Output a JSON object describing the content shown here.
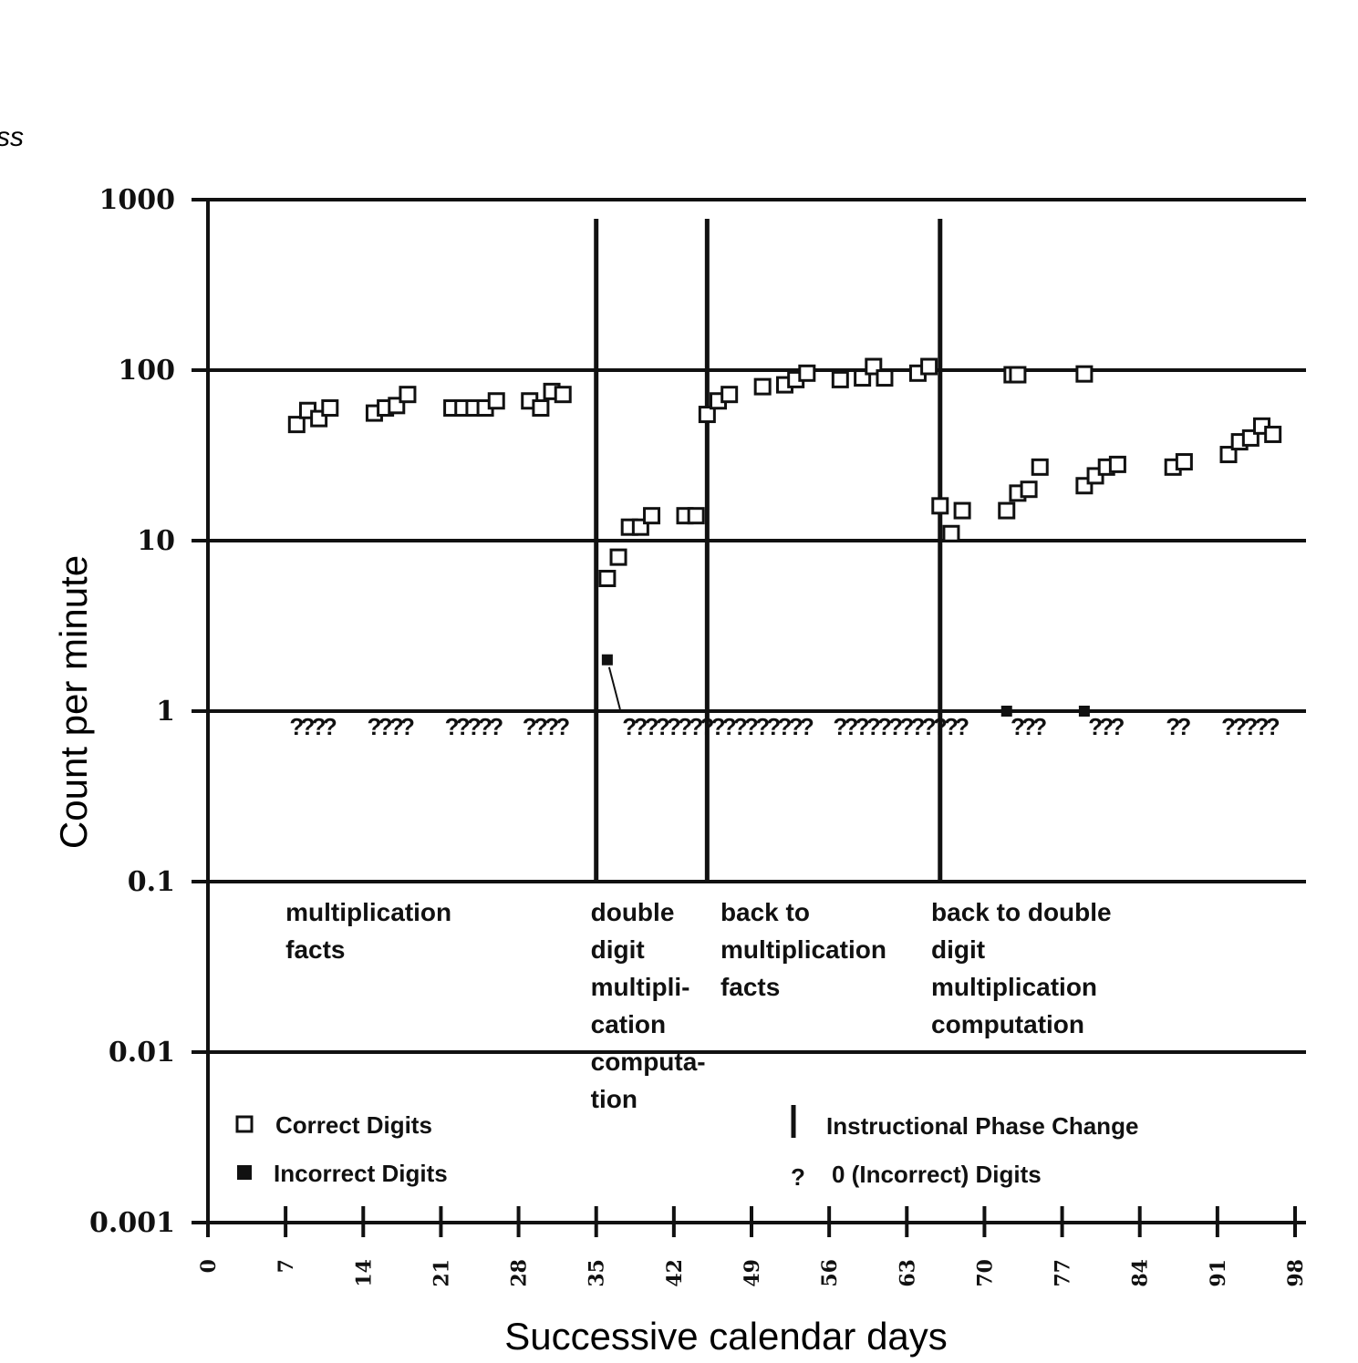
{
  "corner_fragment": "ss",
  "chart_data": {
    "type": "scatter",
    "title": "",
    "xlabel": "Successive calendar days",
    "ylabel": "Count per minute",
    "yscale": "log",
    "ylim": [
      0.001,
      1000
    ],
    "xlim": [
      0,
      98
    ],
    "y_ticks": [
      1000,
      100,
      10,
      1,
      0.1,
      0.01,
      0.001
    ],
    "y_tick_labels": [
      "1000",
      "100",
      "10",
      "1",
      "0.1",
      "0.01",
      "0.001"
    ],
    "x_ticks": [
      0,
      7,
      14,
      21,
      28,
      35,
      42,
      49,
      56,
      63,
      70,
      77,
      84,
      91,
      98
    ],
    "x_tick_labels": [
      "0",
      "7",
      "14",
      "21",
      "28",
      "35",
      "42",
      "49",
      "56",
      "63",
      "70",
      "77",
      "84",
      "91",
      "98"
    ],
    "grid": "horizontal",
    "phase_changes": [
      35,
      45,
      66
    ],
    "phase_labels": [
      {
        "day": 7,
        "lines": [
          "multiplication",
          "facts"
        ]
      },
      {
        "day": 34.5,
        "lines": [
          "double",
          "digit",
          "multipli-",
          "cation",
          "computa-",
          "tion"
        ]
      },
      {
        "day": 46.2,
        "lines": [
          "back to",
          "multiplication",
          "facts"
        ]
      },
      {
        "day": 65.2,
        "lines": [
          "back to double",
          "digit",
          "multiplication",
          "computation"
        ]
      }
    ],
    "series": [
      {
        "name": "Correct Digits",
        "marker": "open-square",
        "points": [
          [
            8,
            48
          ],
          [
            9,
            58
          ],
          [
            10,
            52
          ],
          [
            11,
            60
          ],
          [
            15,
            56
          ],
          [
            16,
            60
          ],
          [
            17,
            62
          ],
          [
            18,
            72
          ],
          [
            22,
            60
          ],
          [
            23,
            60
          ],
          [
            24,
            60
          ],
          [
            25,
            60
          ],
          [
            26,
            66
          ],
          [
            29,
            66
          ],
          [
            30,
            60
          ],
          [
            31,
            75
          ],
          [
            32,
            72
          ],
          [
            36,
            6
          ],
          [
            37,
            8
          ],
          [
            38,
            12
          ],
          [
            39,
            12
          ],
          [
            40,
            14
          ],
          [
            43,
            14
          ],
          [
            44,
            14
          ],
          [
            45,
            55
          ],
          [
            46,
            66
          ],
          [
            47,
            72
          ],
          [
            50,
            80
          ],
          [
            52,
            82
          ],
          [
            53,
            88
          ],
          [
            54,
            96
          ],
          [
            57,
            88
          ],
          [
            59,
            90
          ],
          [
            60,
            105
          ],
          [
            61,
            90
          ],
          [
            64,
            96
          ],
          [
            65,
            105
          ],
          [
            66,
            16
          ],
          [
            67,
            11
          ],
          [
            68,
            15
          ],
          [
            72,
            15
          ],
          [
            73,
            19
          ],
          [
            74,
            20
          ],
          [
            75,
            27
          ],
          [
            72.5,
            94
          ],
          [
            73,
            94
          ],
          [
            79,
            21
          ],
          [
            80,
            24
          ],
          [
            81,
            27
          ],
          [
            82,
            28
          ],
          [
            79,
            95
          ],
          [
            87,
            27
          ],
          [
            88,
            29
          ],
          [
            92,
            32
          ],
          [
            93,
            38
          ],
          [
            94,
            40
          ],
          [
            95,
            47
          ],
          [
            96,
            42
          ]
        ]
      },
      {
        "name": "Incorrect Digits",
        "marker": "filled-square",
        "points": [
          [
            36,
            2
          ],
          [
            72,
            1
          ],
          [
            79,
            1
          ]
        ]
      },
      {
        "name": "0 (Incorrect) Digits",
        "marker": "question",
        "days": [
          8,
          9,
          10,
          11,
          15,
          16,
          17,
          18,
          22,
          23,
          24,
          25,
          26,
          29,
          30,
          31,
          32,
          38,
          39,
          40,
          41,
          42,
          43,
          44,
          45,
          46,
          47,
          48,
          49,
          50,
          51,
          52,
          53,
          54,
          57,
          58,
          59,
          60,
          61,
          62,
          63,
          64,
          65,
          66,
          67,
          68,
          73,
          74,
          75,
          80,
          81,
          82,
          87,
          88,
          92,
          93,
          94,
          95,
          96
        ]
      }
    ],
    "legend": {
      "placement": "bottom",
      "entries": [
        {
          "symbol": "open-square",
          "label": "Correct Digits"
        },
        {
          "symbol": "filled-square",
          "label": "Incorrect Digits"
        },
        {
          "symbol": "bar",
          "label": "Instructional Phase Change"
        },
        {
          "symbol": "question",
          "label": "0 (Incorrect) Digits"
        }
      ]
    }
  }
}
